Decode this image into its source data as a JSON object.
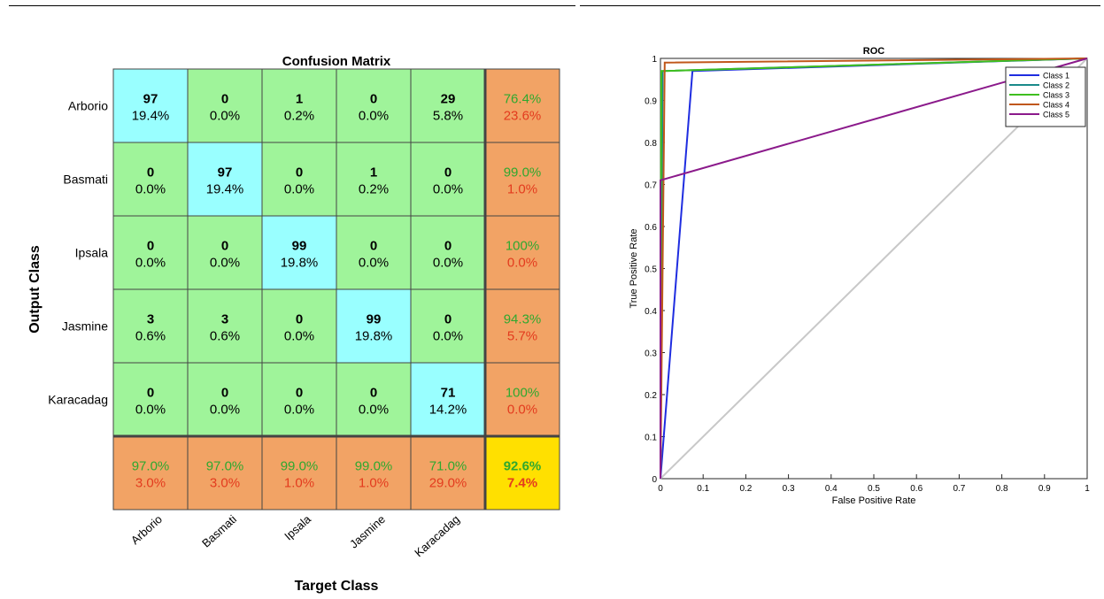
{
  "chart_data": [
    {
      "type": "heatmap",
      "title": "Confusion Matrix",
      "xlabel": "Target Class",
      "ylabel": "Output Class",
      "classes": [
        "Arborio",
        "Basmati",
        "Ipsala",
        "Jasmine",
        "Karacadag"
      ],
      "rows": [
        {
          "counts": [
            97,
            0,
            1,
            0,
            29
          ],
          "percents": [
            "19.4%",
            "0.0%",
            "0.2%",
            "0.0%",
            "5.8%"
          ],
          "precision": "76.4%",
          "error": "23.6%"
        },
        {
          "counts": [
            0,
            97,
            0,
            1,
            0
          ],
          "percents": [
            "0.0%",
            "19.4%",
            "0.0%",
            "0.2%",
            "0.0%"
          ],
          "precision": "99.0%",
          "error": "1.0%"
        },
        {
          "counts": [
            0,
            0,
            99,
            0,
            0
          ],
          "percents": [
            "0.0%",
            "0.0%",
            "19.8%",
            "0.0%",
            "0.0%"
          ],
          "precision": "100%",
          "error": "0.0%"
        },
        {
          "counts": [
            3,
            3,
            0,
            99,
            0
          ],
          "percents": [
            "0.6%",
            "0.6%",
            "0.0%",
            "19.8%",
            "0.0%"
          ],
          "precision": "94.3%",
          "error": "5.7%"
        },
        {
          "counts": [
            0,
            0,
            0,
            0,
            71
          ],
          "percents": [
            "0.0%",
            "0.0%",
            "0.0%",
            "0.0%",
            "14.2%"
          ],
          "precision": "100%",
          "error": "0.0%"
        }
      ],
      "recall": [
        "97.0%",
        "97.0%",
        "99.0%",
        "99.0%",
        "71.0%"
      ],
      "recall_error": [
        "3.0%",
        "3.0%",
        "1.0%",
        "1.0%",
        "29.0%"
      ],
      "overall_accuracy": "92.6%",
      "overall_error": "7.4%",
      "colors": {
        "diagonal": "#99ffff",
        "offdiag": "#9ff49a",
        "summary": "#f2a365",
        "total": "#ffe000",
        "good": "#2fa82f",
        "bad": "#e33b1e"
      }
    },
    {
      "type": "line",
      "title": "ROC",
      "xlabel": "False Positive Rate",
      "ylabel": "True Positive Rate",
      "xlim": [
        0,
        1
      ],
      "ylim": [
        0,
        1
      ],
      "xticks": [
        "0",
        "0.1",
        "0.2",
        "0.3",
        "0.4",
        "0.5",
        "0.6",
        "0.7",
        "0.8",
        "0.9",
        "1"
      ],
      "yticks": [
        "0",
        "0.1",
        "0.2",
        "0.3",
        "0.4",
        "0.5",
        "0.6",
        "0.7",
        "0.8",
        "0.9",
        "1"
      ],
      "legend_position": "top-right",
      "diagonal_color": "#c8c8c8",
      "series": [
        {
          "name": "Class 1",
          "color": "#1f2de0",
          "x": [
            0,
            0.075,
            1
          ],
          "y": [
            0,
            0.97,
            1
          ]
        },
        {
          "name": "Class 2",
          "color": "#1a8a8a",
          "x": [
            0,
            0.005,
            1
          ],
          "y": [
            0,
            0.97,
            1
          ]
        },
        {
          "name": "Class 3",
          "color": "#3fbf1f",
          "x": [
            0,
            0.002,
            0.01,
            1
          ],
          "y": [
            0,
            0.97,
            0.97,
            1
          ]
        },
        {
          "name": "Class 4",
          "color": "#c0571a",
          "x": [
            0,
            0.01,
            1
          ],
          "y": [
            0,
            0.99,
            1
          ]
        },
        {
          "name": "Class 5",
          "color": "#8b1a8b",
          "x": [
            0,
            0.0,
            1
          ],
          "y": [
            0,
            0.71,
            1
          ]
        }
      ]
    }
  ]
}
